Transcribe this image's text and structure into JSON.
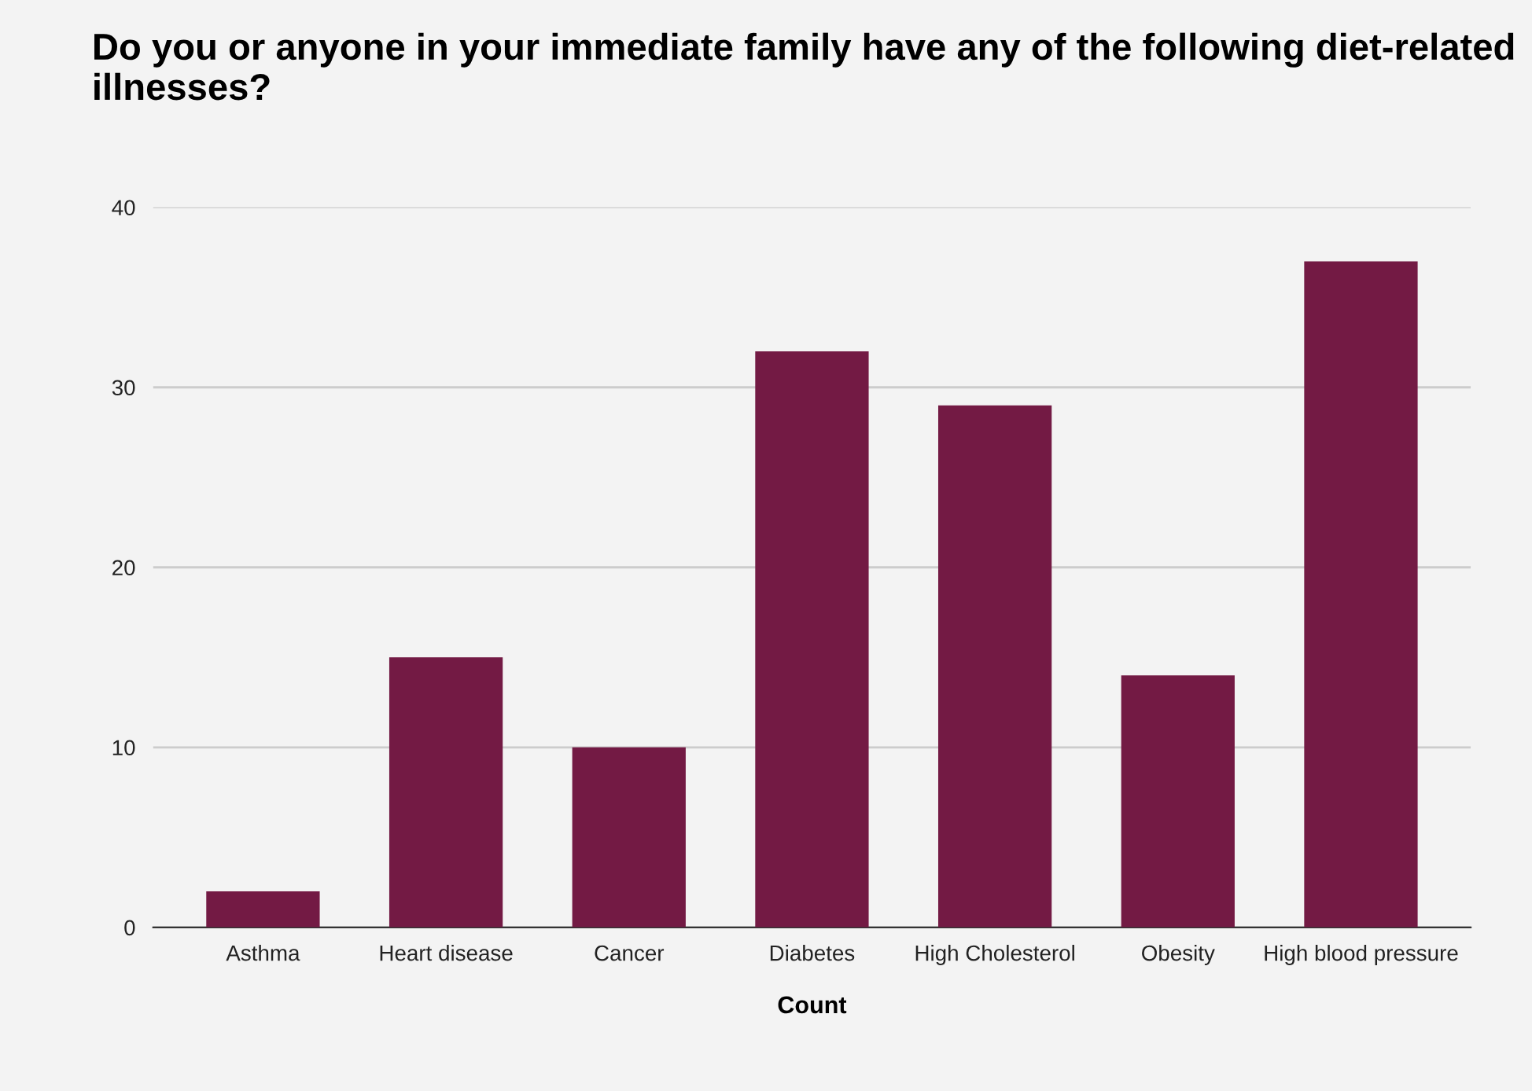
{
  "chart_data": {
    "type": "bar",
    "title": "Do you or anyone in your immediate family have any of the following diet-related illnesses?",
    "xlabel": "Count",
    "categories": [
      "Asthma",
      "Heart disease",
      "Cancer",
      "Diabetes",
      "High Cholesterol",
      "Obesity",
      "High blood pressure"
    ],
    "values": [
      2,
      15,
      10,
      32,
      29,
      14,
      37
    ],
    "color": "#731a44",
    "ylim": [
      0,
      40
    ],
    "yticks": [
      0,
      10,
      20,
      30,
      40
    ],
    "grid": "y",
    "legend": false
  }
}
